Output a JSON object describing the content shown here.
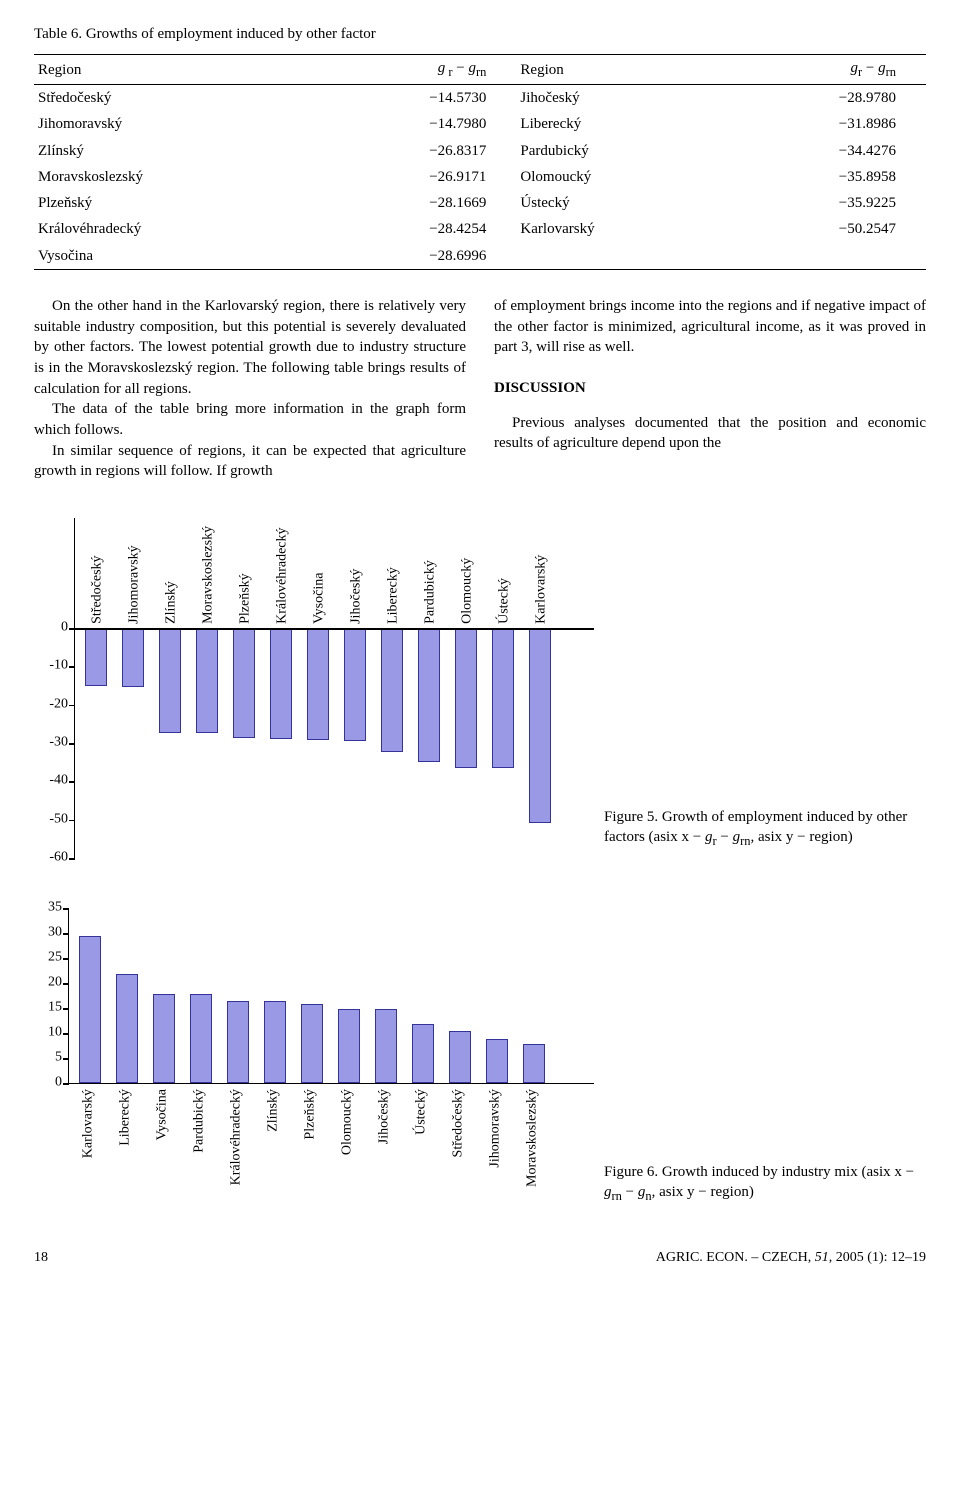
{
  "tableTitle": "Table 6. Growths of employment induced by other factor",
  "tableHeaders": {
    "region": "Region",
    "formula": "g_r − g_rn"
  },
  "tableLeft": [
    {
      "region": "Středočeský",
      "val": "−14.5730"
    },
    {
      "region": "Jihomoravský",
      "val": "−14.7980"
    },
    {
      "region": "Zlínský",
      "val": "−26.8317"
    },
    {
      "region": "Moravskoslezský",
      "val": "−26.9171"
    },
    {
      "region": "Plzeňský",
      "val": "−28.1669"
    },
    {
      "region": "Královéhradecký",
      "val": "−28.4254"
    },
    {
      "region": "Vysočina",
      "val": "−28.6996"
    }
  ],
  "tableRight": [
    {
      "region": "Jihočeský",
      "val": "−28.9780"
    },
    {
      "region": "Liberecký",
      "val": "−31.8986"
    },
    {
      "region": "Pardubický",
      "val": "−34.4276"
    },
    {
      "region": "Olomoucký",
      "val": "−35.8958"
    },
    {
      "region": "Ústecký",
      "val": "−35.9225"
    },
    {
      "region": "Karlovarský",
      "val": "−50.2547"
    },
    {
      "region": "",
      "val": ""
    }
  ],
  "para1a": "On the other hand in the Karlovarský region, there is relatively very suitable industry composition, but this potential is severely devaluated by other factors. The lowest potential growth due to industry structure is in the Moravskoslezský region. The following table brings results of calculation for all regions.",
  "para1b": "The data of the table bring more information in the graph form which follows.",
  "para1c": "In similar sequence of regions, it can be expected that agriculture growth in regions will follow. If growth",
  "para2a": "of employment brings income into the regions and if negative impact of the other factor is minimized, agricultural income, as it was proved in part 3, will rise as well.",
  "discussionHead": "DISCUSSION",
  "para2b": "Previous analyses documented that the position and economic results of agriculture depend upon the",
  "chart1": {
    "ymin": -60,
    "ymax": 0,
    "ystep": 10,
    "bar_color": "#9999e5",
    "bar_border": "#333399",
    "plotHeightPx": 230,
    "labelBandPx": 110,
    "bars": [
      {
        "label": "Středočeský",
        "v": -14.573
      },
      {
        "label": "Jihomoravský",
        "v": -14.798
      },
      {
        "label": "Zlínský",
        "v": -26.8317
      },
      {
        "label": "Moravskoslezský",
        "v": -26.9171
      },
      {
        "label": "Plzeňský",
        "v": -28.1669
      },
      {
        "label": "Královéhradecký",
        "v": -28.4254
      },
      {
        "label": "Vysočina",
        "v": -28.6996
      },
      {
        "label": "Jihočeský",
        "v": -28.978
      },
      {
        "label": "Liberecký",
        "v": -31.8986
      },
      {
        "label": "Pardubický",
        "v": -34.4276
      },
      {
        "label": "Olomoucký",
        "v": -35.8958
      },
      {
        "label": "Ústecký",
        "v": -35.9225
      },
      {
        "label": "Karlovarský",
        "v": -50.2547
      }
    ]
  },
  "chart1Caption": "Figure 5. Growth of employment induced by other factors (asix x − g_r − g_rn, asix y − region)",
  "chart2": {
    "ymin": 0,
    "ymax": 35,
    "ystep": 5,
    "bar_color": "#9999e5",
    "bar_border": "#333399",
    "plotHeightPx": 175,
    "bars": [
      {
        "label": "Karlovarský",
        "v": 29
      },
      {
        "label": "Liberecký",
        "v": 21.5
      },
      {
        "label": "Vysočina",
        "v": 17.5
      },
      {
        "label": "Pardubický",
        "v": 17.5
      },
      {
        "label": "Královéhradecký",
        "v": 16
      },
      {
        "label": "Zlínský",
        "v": 16
      },
      {
        "label": "Plzeňský",
        "v": 15.5
      },
      {
        "label": "Olomoucký",
        "v": 14.5
      },
      {
        "label": "Jihočeský",
        "v": 14.5
      },
      {
        "label": "Ústecký",
        "v": 11.5
      },
      {
        "label": "Středočeský",
        "v": 10
      },
      {
        "label": "Jihomoravský",
        "v": 8.5
      },
      {
        "label": "Moravskoslezský",
        "v": 7.5
      }
    ]
  },
  "chart2Caption": "Figure 6. Growth induced by industry mix (asix x − g_rn − g_n, asix y − region)",
  "footerLeft": "18",
  "footerRight": "AGRIC. ECON. – CZECH, 51, 2005 (1): 12–19"
}
